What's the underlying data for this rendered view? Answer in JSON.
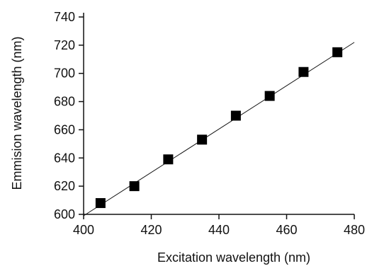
{
  "chart_data": {
    "type": "scatter",
    "xlabel": "Excitation wavelength (nm)",
    "ylabel": "Emmision wavelength (nm)",
    "xlim": [
      400,
      480
    ],
    "ylim": [
      600,
      740
    ],
    "xticks": [
      400,
      420,
      440,
      460,
      480
    ],
    "yticks": [
      600,
      620,
      640,
      660,
      680,
      700,
      720,
      740
    ],
    "grid": false,
    "legend": "none",
    "series": [
      {
        "x": [
          405,
          415,
          425,
          435,
          445,
          455,
          465,
          475
        ],
        "y": [
          608,
          620,
          639,
          653,
          670,
          684,
          701,
          715
        ],
        "marker": "square",
        "color": "#000000"
      }
    ],
    "fit_line": {
      "x": [
        400,
        480
      ],
      "y": [
        599,
        722
      ],
      "color": "#000000"
    }
  }
}
